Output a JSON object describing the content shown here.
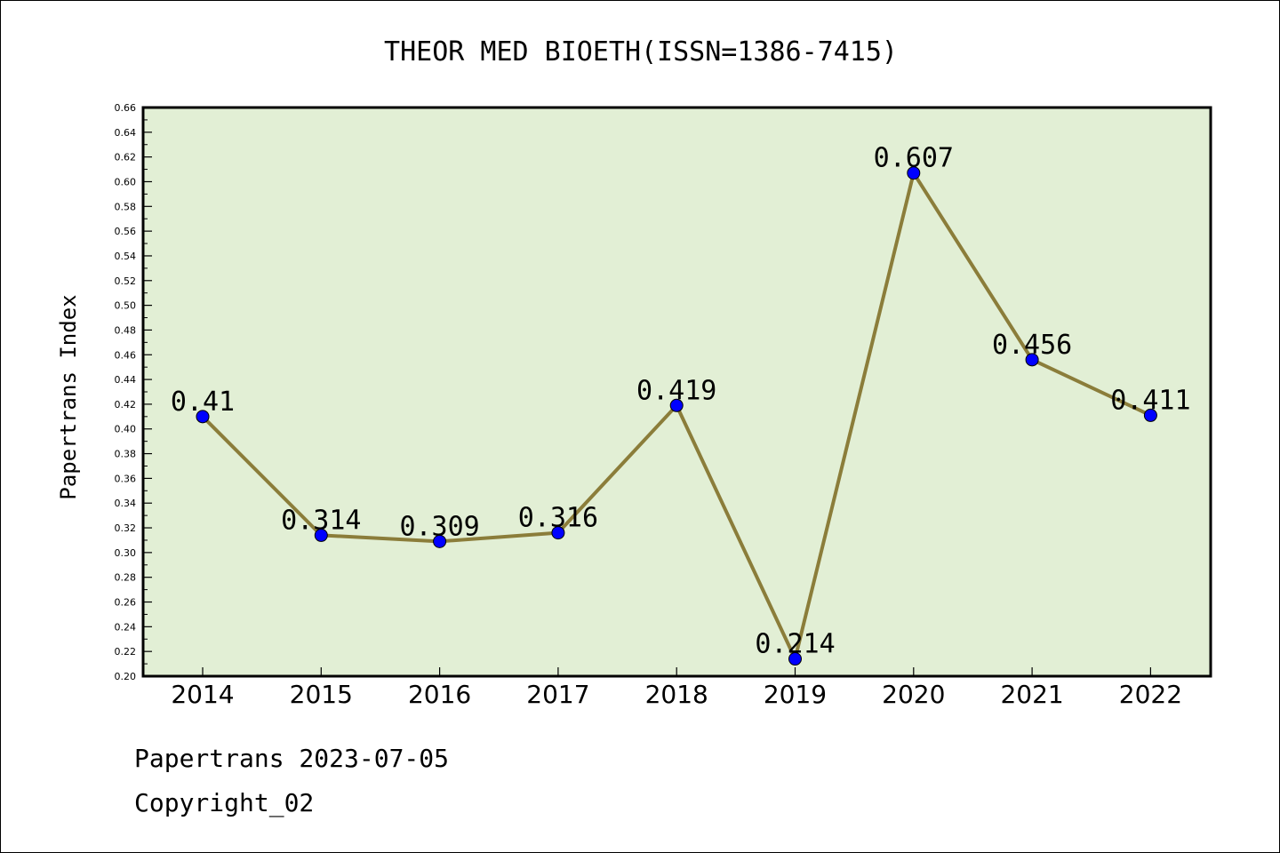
{
  "chart_data": {
    "type": "line",
    "title": "THEOR MED BIOETH(ISSN=1386-7415)",
    "xlabel": "",
    "ylabel": "Papertrans Index",
    "categories": [
      "2014",
      "2015",
      "2016",
      "2017",
      "2018",
      "2019",
      "2020",
      "2021",
      "2022"
    ],
    "series": [
      {
        "values": [
          0.41,
          0.314,
          0.309,
          0.316,
          0.419,
          0.214,
          0.607,
          0.456,
          0.411
        ],
        "labels": [
          "0.41",
          "0.314",
          "0.309",
          "0.316",
          "0.419",
          "0.214",
          "0.607",
          "0.456",
          "0.411"
        ],
        "line_color": "#8b7d3a",
        "marker_color": "#0000ff"
      }
    ],
    "ylim": [
      0.2,
      0.66
    ],
    "yticks": [
      "0.20",
      "0.22",
      "0.24",
      "0.26",
      "0.28",
      "0.30",
      "0.32",
      "0.34",
      "0.36",
      "0.38",
      "0.40",
      "0.42",
      "0.44",
      "0.46",
      "0.48",
      "0.50",
      "0.52",
      "0.54",
      "0.56",
      "0.58",
      "0.60",
      "0.62",
      "0.64",
      "0.66"
    ],
    "grid": false,
    "plot_background": "#e2efd5"
  },
  "footer": {
    "date": "Papertrans 2023-07-05",
    "copyright": "Copyright_02"
  }
}
